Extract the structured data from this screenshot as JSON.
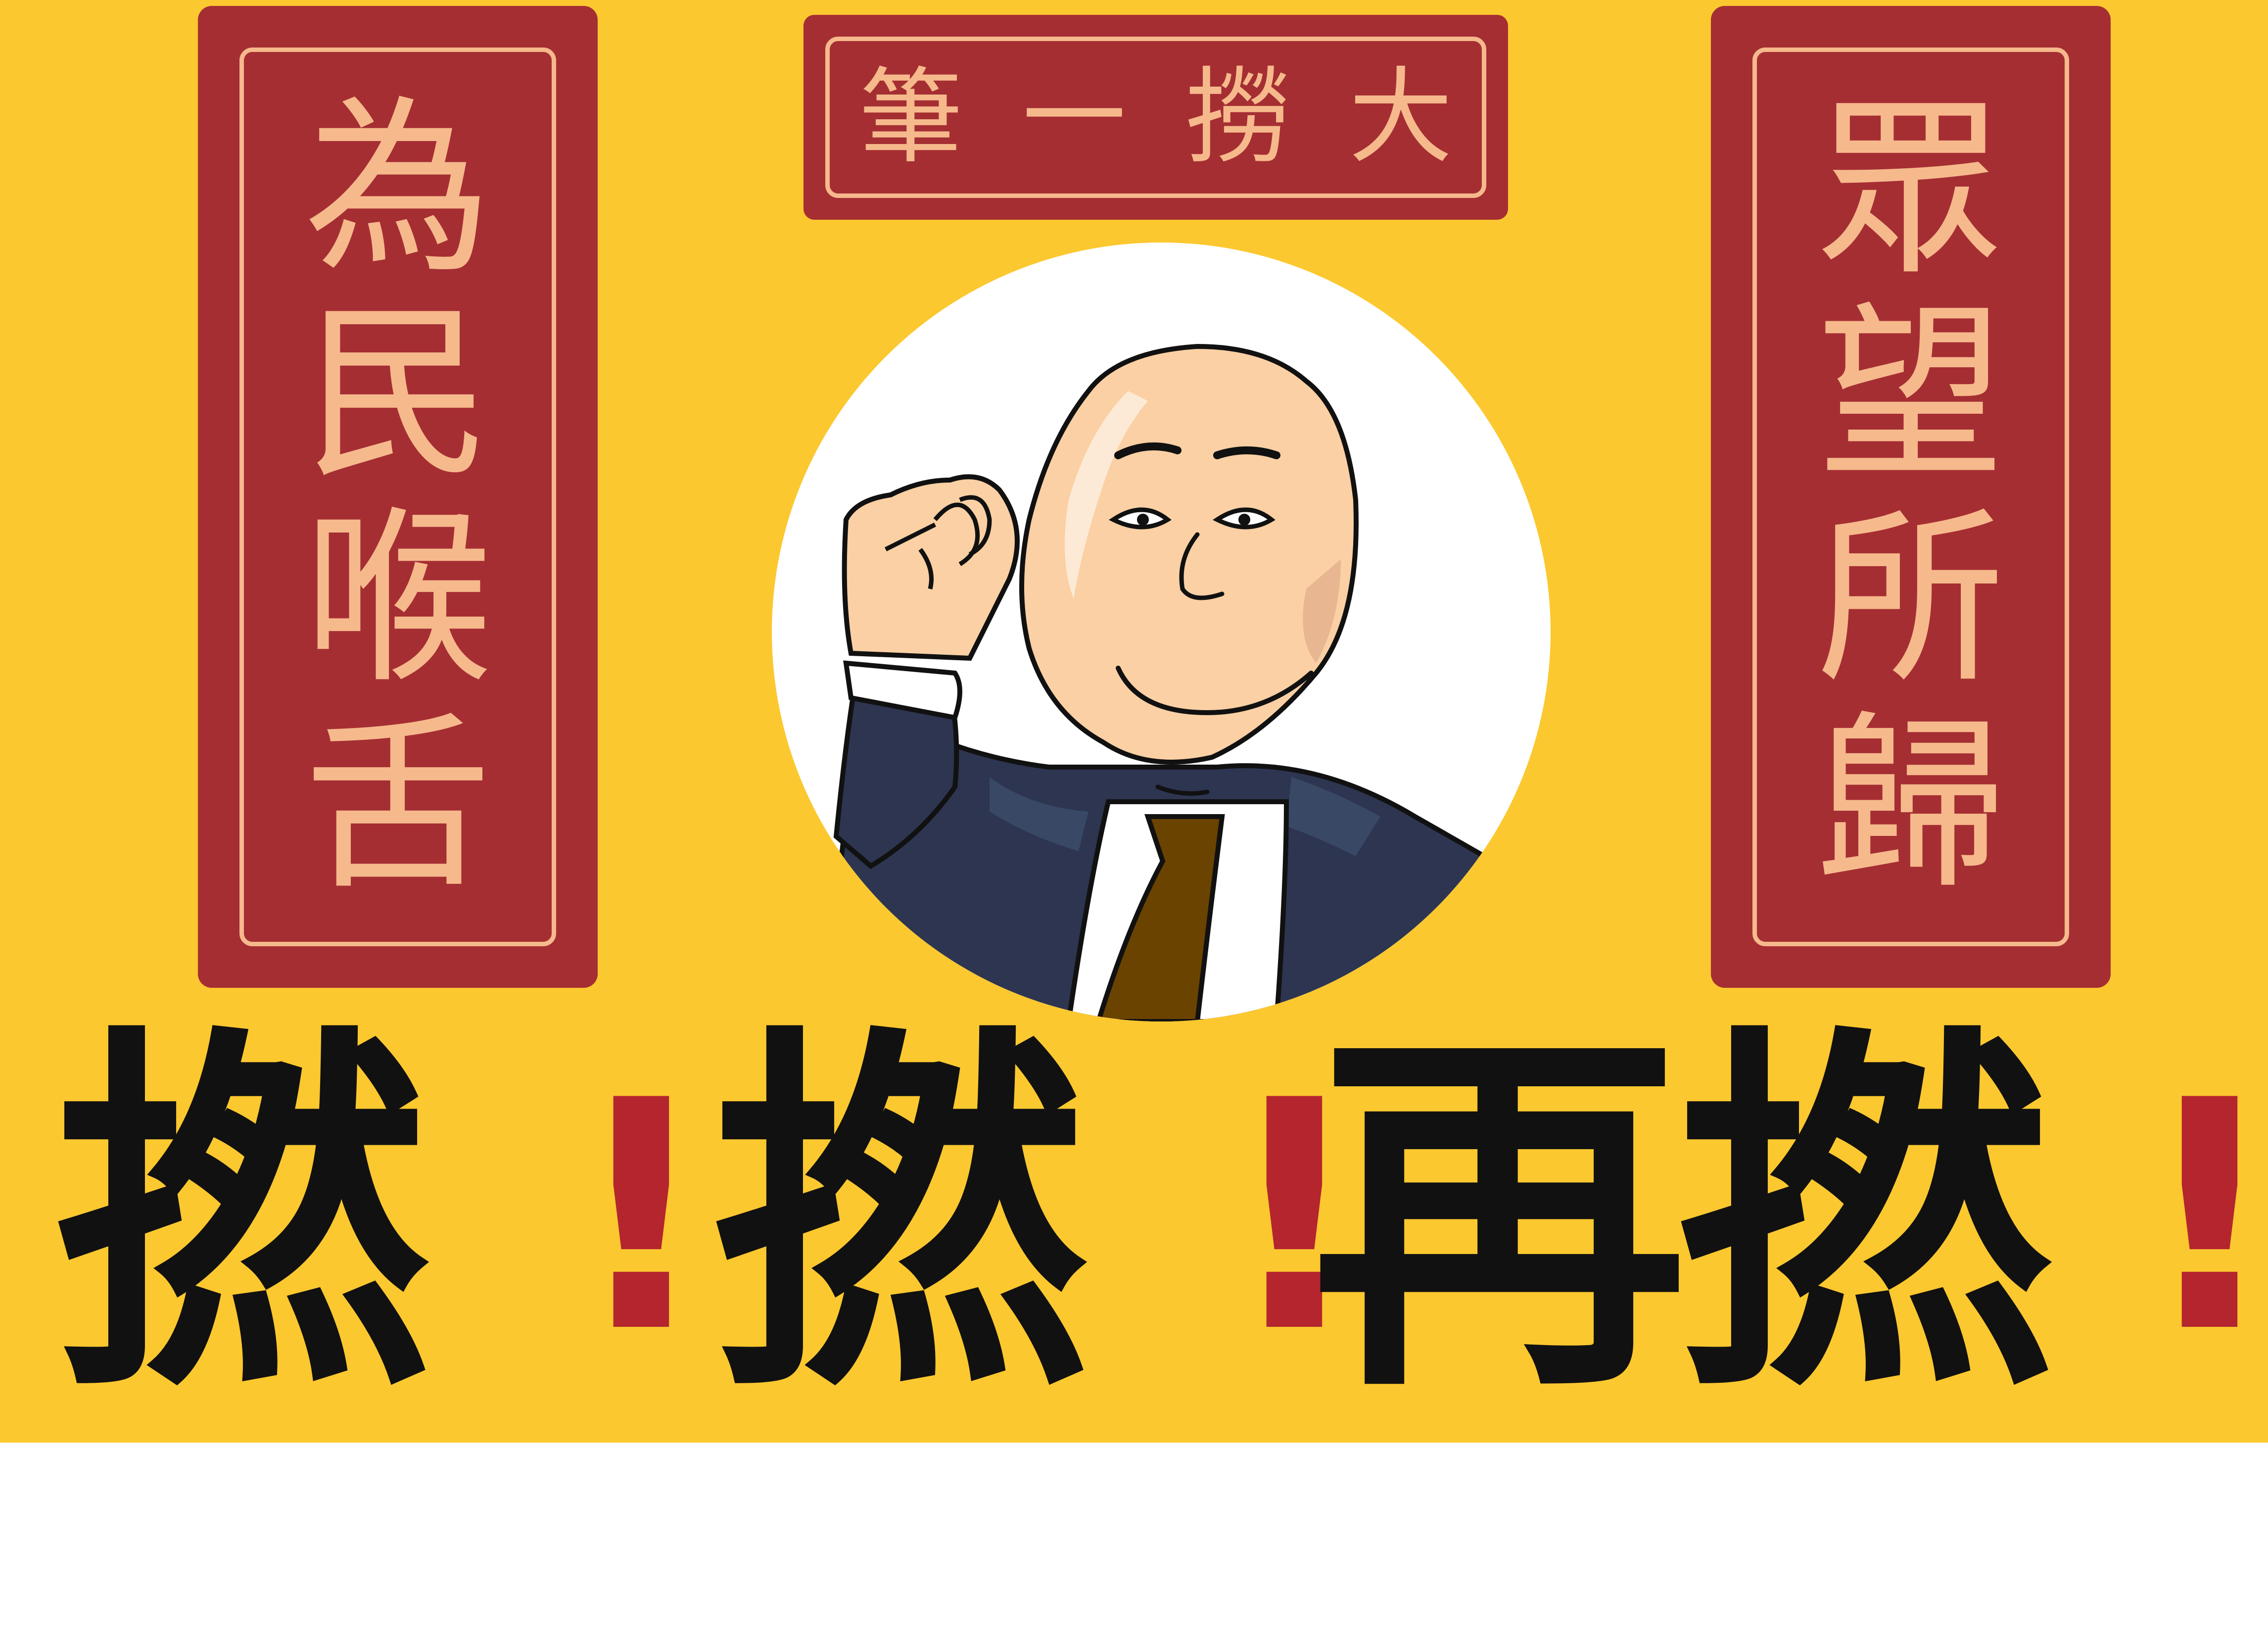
{
  "colors": {
    "background": "#FCC82F",
    "couplet_red": "#A52E33",
    "couplet_text": "#F6B98C",
    "slogan_text": "#111111",
    "exclamation": "#B4252E",
    "skin": "#FAD0A4",
    "suit": "#2D3550",
    "tie": "#6B4300"
  },
  "top_plaque": {
    "chars": [
      "筆",
      "一",
      "撈",
      "大"
    ]
  },
  "left_couplet": {
    "chars": [
      "為",
      "民",
      "喉",
      "舌"
    ]
  },
  "right_couplet": {
    "chars": [
      "眾",
      "望",
      "所",
      "歸"
    ]
  },
  "slogan": {
    "items": [
      "撚",
      "!",
      "撚",
      "!",
      "再",
      "撚",
      "!"
    ]
  },
  "illustration": {
    "subject": "bald-man-in-suit-fist-raised"
  }
}
